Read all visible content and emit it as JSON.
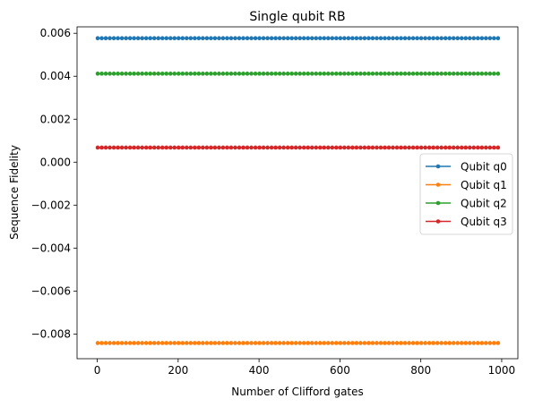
{
  "chart_data": {
    "type": "line",
    "title": "Single qubit RB",
    "xlabel": "Number of Clifford gates",
    "ylabel": "Sequence Fidelity",
    "xlim": [
      -50,
      1040
    ],
    "ylim": [
      -0.00915,
      0.0063
    ],
    "xticks": [
      0,
      200,
      400,
      600,
      800,
      1000
    ],
    "xtick_labels": [
      "0",
      "200",
      "400",
      "600",
      "800",
      "1000"
    ],
    "yticks": [
      -0.008,
      -0.006,
      -0.004,
      -0.002,
      0.0,
      0.002,
      0.004,
      0.006
    ],
    "ytick_labels": [
      "−0.008",
      "−0.006",
      "−0.004",
      "−0.002",
      "0.000",
      "0.002",
      "0.004",
      "0.006"
    ],
    "grid": false,
    "legend_position": "center-right",
    "x": {
      "start": 1,
      "stop": 991,
      "step": 10
    },
    "series": [
      {
        "name": "Qubit q0",
        "color": "#1f77b4",
        "value": 0.00577
      },
      {
        "name": "Qubit q1",
        "color": "#ff7f0e",
        "value": -0.00842
      },
      {
        "name": "Qubit q2",
        "color": "#2ca02c",
        "value": 0.00412
      },
      {
        "name": "Qubit q3",
        "color": "#d62728",
        "value": 0.00068
      }
    ]
  }
}
